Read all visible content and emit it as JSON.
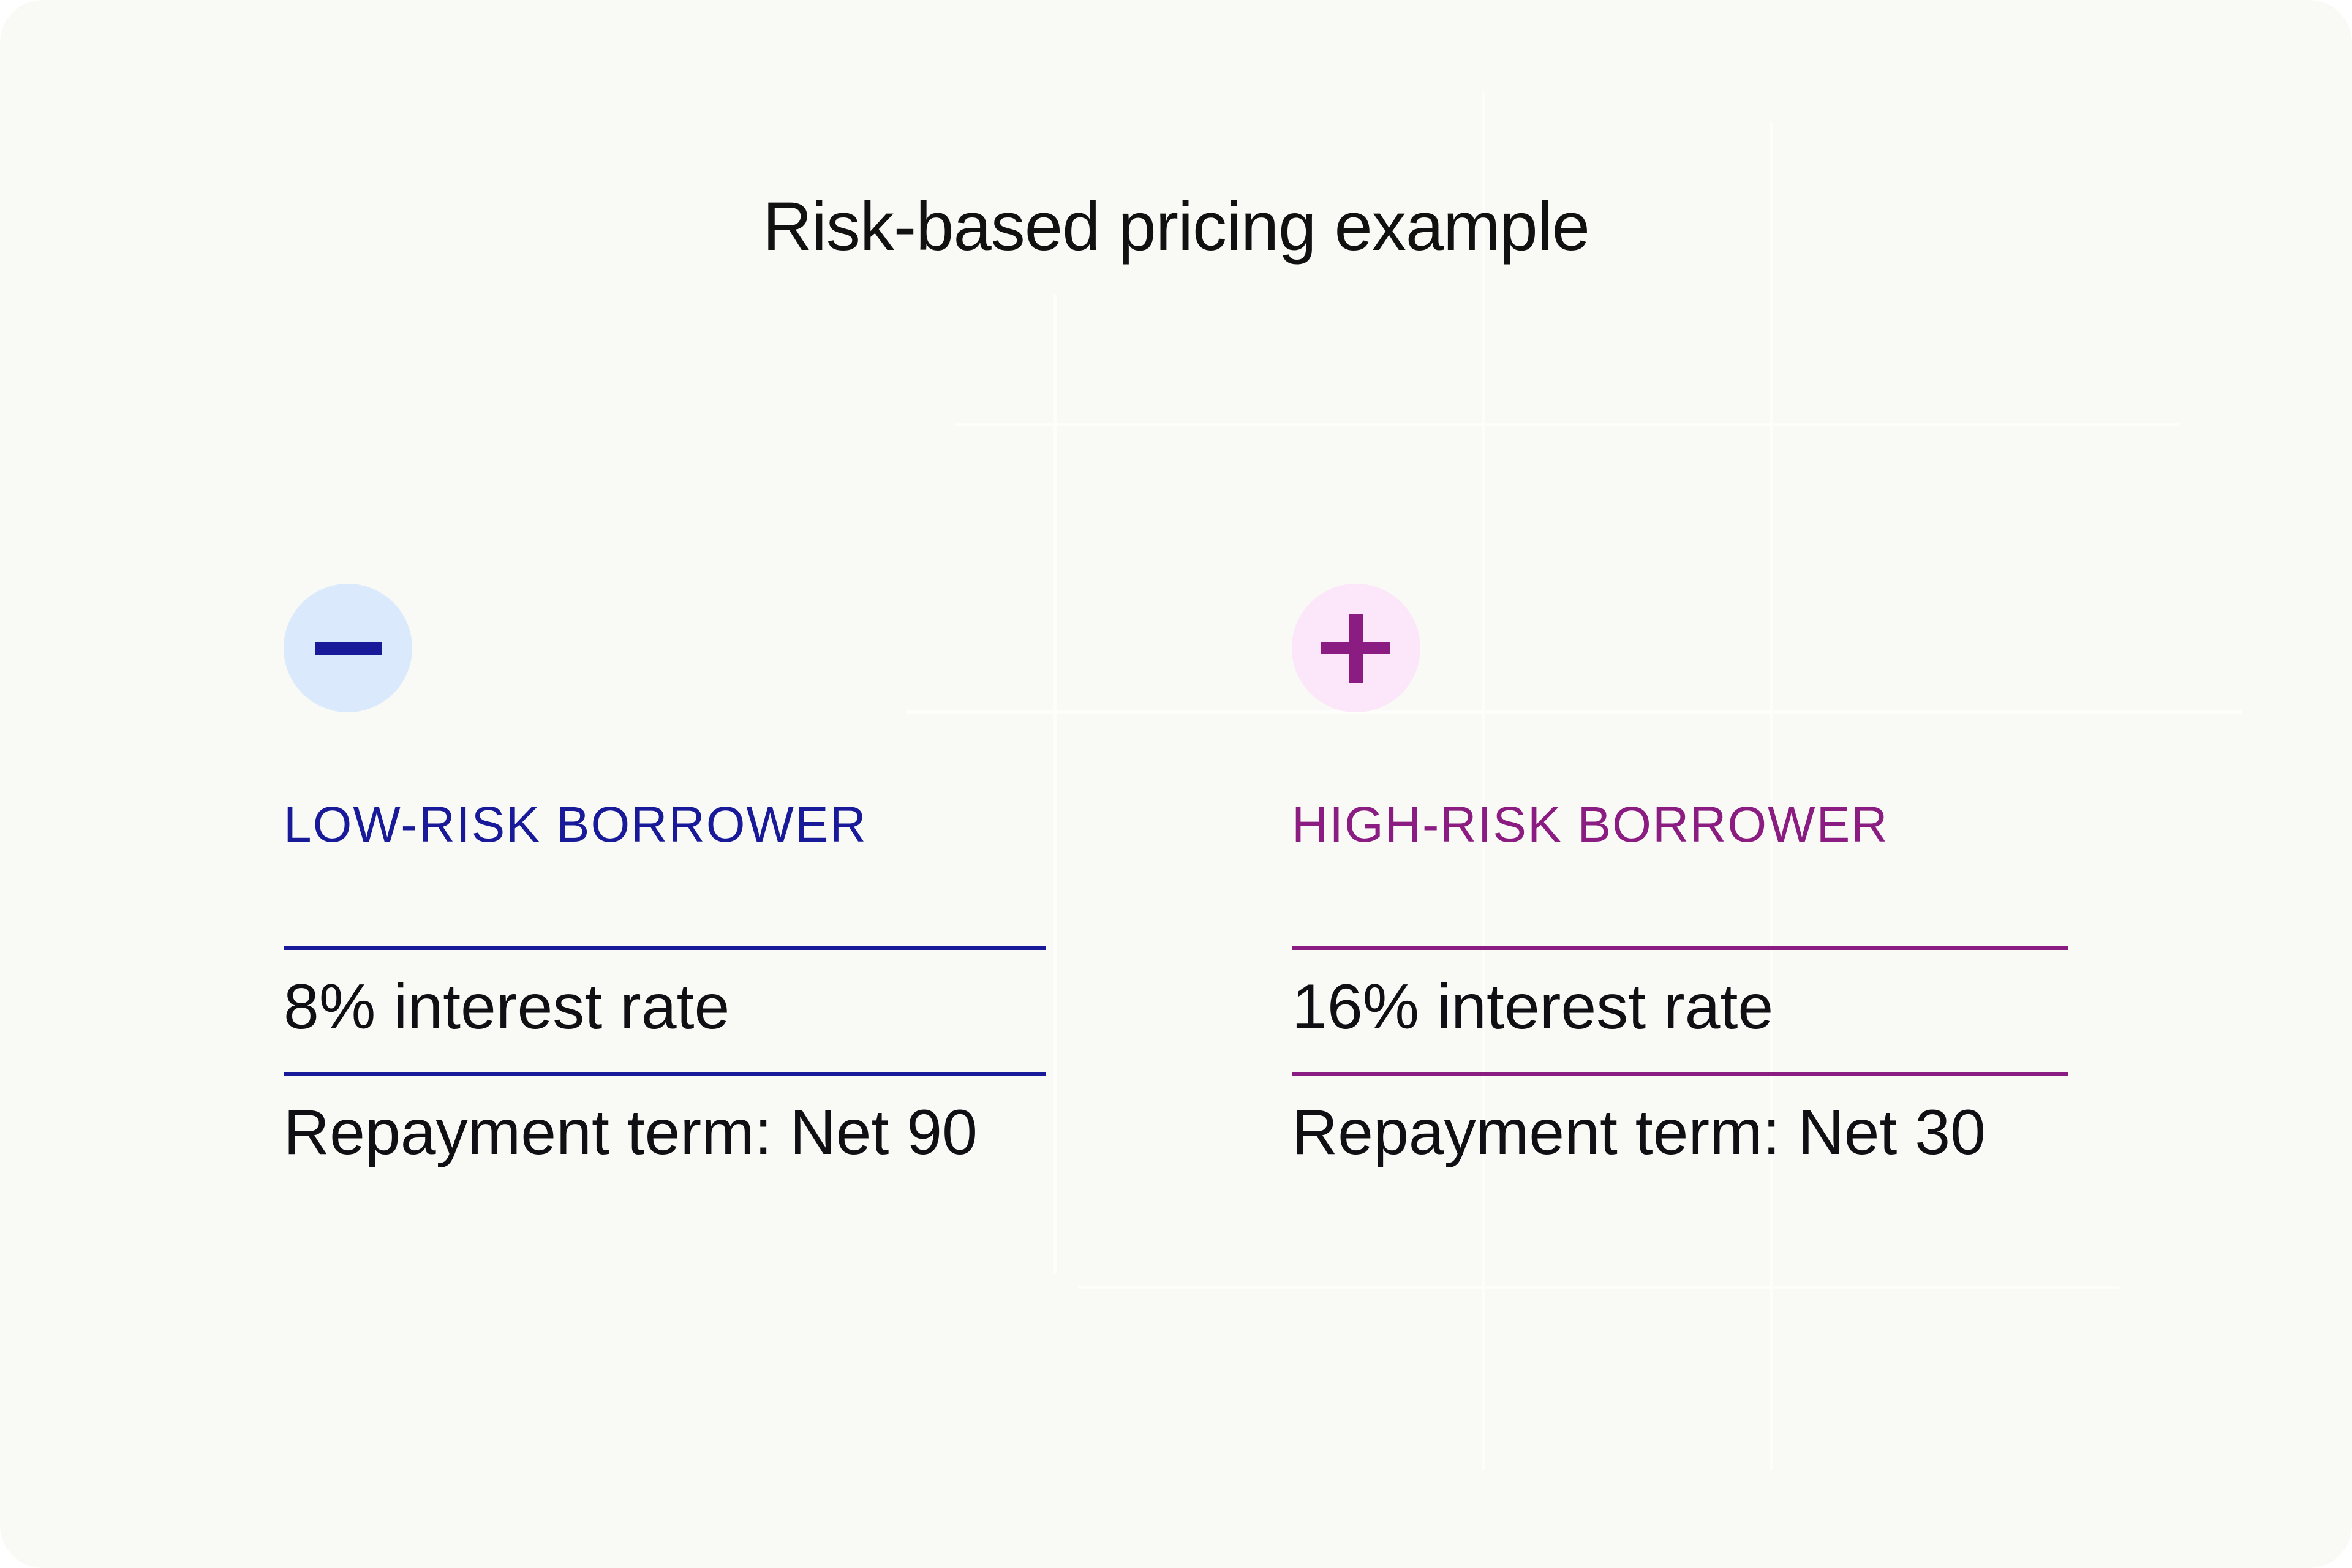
{
  "title": "Risk-based pricing example",
  "colors": {
    "background": "#f9f9f5",
    "low_accent": "#181a9a",
    "low_icon_bg": "#dbe9fd",
    "high_accent": "#8b1c82",
    "high_icon_bg": "#fbe6fa"
  },
  "columns": [
    {
      "icon": "minus-icon",
      "label": "LOW-RISK BORROWER",
      "rate": "8% interest rate",
      "term": "Repayment term: Net 90"
    },
    {
      "icon": "plus-icon",
      "label": "HIGH-RISK BORROWER",
      "rate": "16% interest rate",
      "term": "Repayment term: Net 30"
    }
  ]
}
